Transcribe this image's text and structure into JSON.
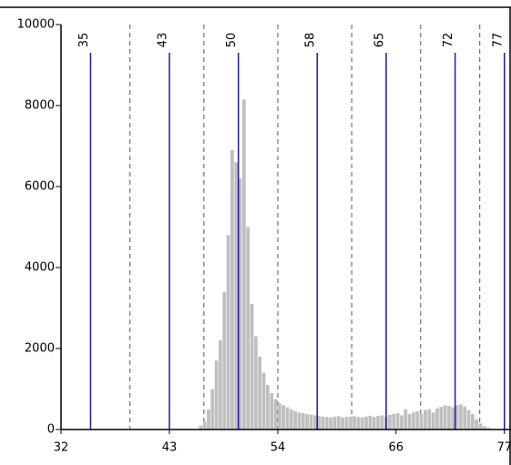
{
  "chart_data": {
    "type": "histogram",
    "bins": [
      46.0,
      46.4,
      46.8,
      47.2,
      47.6,
      48.0,
      48.4,
      48.8,
      49.2,
      49.6,
      50.0,
      50.4,
      50.8,
      51.2,
      51.6,
      52.0,
      52.4,
      52.8,
      53.2,
      53.6,
      54.0,
      54.4,
      54.8,
      55.2,
      55.6,
      56.0,
      56.4,
      56.8,
      57.2,
      57.6,
      58.0,
      58.4,
      58.8,
      59.2,
      59.6,
      60.0,
      60.4,
      60.8,
      61.2,
      61.6,
      62.0,
      62.4,
      62.8,
      63.2,
      63.6,
      64.0,
      64.4,
      64.8,
      65.2,
      65.6,
      66.0,
      66.4,
      66.8,
      67.2,
      67.6,
      68.0,
      68.4,
      68.8,
      69.2,
      69.6,
      70.0,
      70.4,
      70.8,
      71.2,
      71.6,
      72.0,
      72.4,
      72.8,
      73.2,
      73.6,
      74.0,
      74.4,
      74.8,
      75.2,
      75.6
    ],
    "values": [
      100,
      200,
      500,
      1000,
      1700,
      2200,
      3400,
      4800,
      6900,
      6600,
      6200,
      8150,
      5000,
      3100,
      2300,
      1800,
      1400,
      1100,
      900,
      750,
      650,
      600,
      550,
      500,
      450,
      420,
      400,
      380,
      370,
      350,
      330,
      320,
      310,
      300,
      320,
      330,
      300,
      310,
      320,
      330,
      310,
      300,
      320,
      340,
      310,
      330,
      350,
      320,
      360,
      380,
      400,
      350,
      500,
      380,
      420,
      450,
      380,
      480,
      500,
      420,
      520,
      560,
      600,
      580,
      550,
      600,
      620,
      570,
      480,
      380,
      250,
      150,
      80,
      40
    ],
    "color": "#bfbfbf",
    "markers": [
      35,
      43,
      50,
      58,
      65,
      72,
      77
    ],
    "marker_color": "#1c1ca8",
    "xlim": [
      32,
      77.3
    ],
    "xticks": [
      32,
      43,
      54,
      66,
      77
    ],
    "ylim": [
      0,
      10000
    ],
    "yticks": [
      0,
      2000,
      4000,
      6000,
      8000,
      10000
    ]
  }
}
